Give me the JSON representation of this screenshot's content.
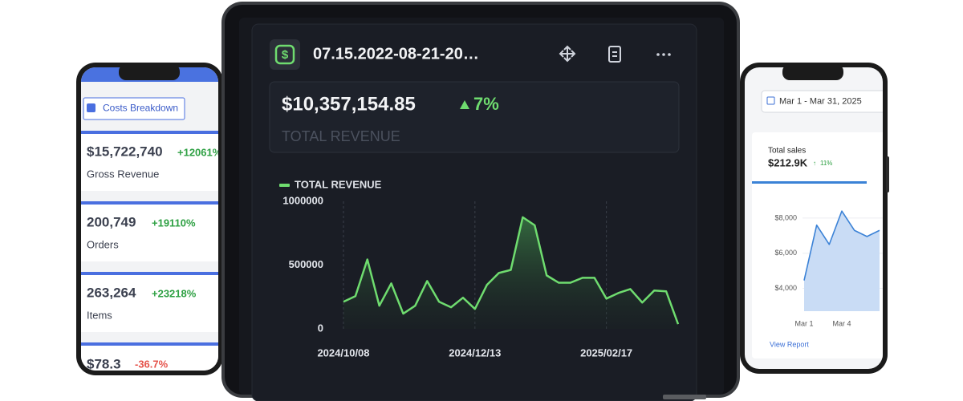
{
  "left_phone": {
    "button": "Costs Breakdown",
    "cards": [
      {
        "value": "$15,722,740",
        "change": "+12061%",
        "label": "Gross Revenue"
      },
      {
        "value": "200,749",
        "change": "+19110%",
        "label": "Orders"
      },
      {
        "value": "263,264",
        "change": "+23218%",
        "label": "Items"
      },
      {
        "value": "$78.3",
        "change": "-36.7%"
      }
    ]
  },
  "tablet": {
    "title": "07.15.2022-08-21-20…",
    "total": "$10,357,154.85",
    "change": "7%",
    "total_label": "TOTAL REVENUE"
  },
  "right_phone": {
    "date_range": "Mar 1 - Mar 31, 2025",
    "total": "$212.9K",
    "change": "11%",
    "link": "View Report"
  },
  "chart_data": [
    {
      "type": "area",
      "categories": [
        "2024/10/08",
        null,
        null,
        null,
        null,
        null,
        null,
        null,
        null,
        null,
        null,
        "2024/12/13",
        null,
        null,
        null,
        null,
        null,
        null,
        null,
        null,
        null,
        null,
        "2025/02/17",
        null,
        null,
        null,
        null,
        null,
        null
      ],
      "series": [
        {
          "name": "TOTAL REVENUE",
          "color": "#6fdc6f",
          "values": [
            212000,
            256000,
            544000,
            181000,
            356000,
            119000,
            181000,
            375000,
            212000,
            169000,
            244000,
            156000,
            344000,
            438000,
            462000,
            875000,
            812000,
            419000,
            362000,
            362000,
            400000,
            400000,
            237000,
            281000,
            312000,
            206000,
            300000,
            294000,
            37000
          ]
        }
      ],
      "ylim": [
        0,
        1000000
      ],
      "yticks": [
        0,
        500000,
        1000000
      ],
      "grid": false
    },
    {
      "type": "area",
      "title": "Total sales",
      "categories": [
        "Mar 1",
        null,
        null,
        "Mar 4",
        null,
        null,
        null
      ],
      "values": [
        4450,
        7600,
        6500,
        8400,
        7300,
        6950,
        7300
      ],
      "color": "#3b82d6",
      "ylim": [
        2700,
        9000
      ],
      "yticks": [
        {
          "value": 4000,
          "label": "$4,000"
        },
        {
          "value": 6000,
          "label": "$6,000"
        },
        {
          "value": 8000,
          "label": "$8,000"
        }
      ],
      "grid": true
    }
  ]
}
